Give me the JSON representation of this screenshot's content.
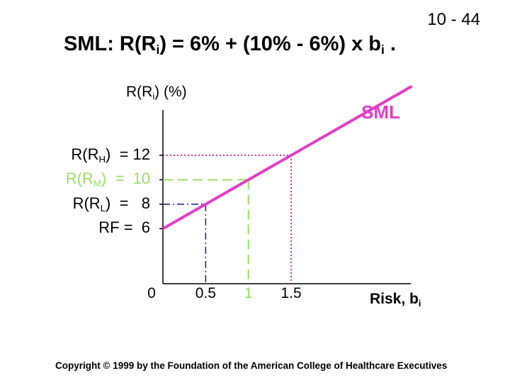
{
  "slide_number": "10 - 44",
  "title": {
    "prefix": "SML: R(R",
    "sub": "i",
    "middle": ") = 6% + (10% - 6%) x b",
    "sub2": "i",
    "suffix": " ."
  },
  "copyright": "Copyright © 1999 by the Foundation of the American College of Healthcare Executives",
  "colors": {
    "sml_line": "#e33cc8",
    "high_guides": "#d0007a",
    "market_guides": "#99e066",
    "low_guides": "#1a2f8a",
    "axis": "#000000"
  },
  "chart_data": {
    "type": "line",
    "series": [
      {
        "name": "SML",
        "x": [
          0,
          1,
          2.9
        ],
        "y": [
          6,
          10,
          17.6
        ]
      }
    ],
    "xlim": [
      0,
      2.9
    ],
    "ylim": [
      1.5,
      16
    ],
    "x_ticks": [
      {
        "value": 0,
        "label": "0",
        "color": "#000000"
      },
      {
        "value": 0.5,
        "label": "0.5",
        "color": "#000000"
      },
      {
        "value": 1,
        "label": "1",
        "color": "#99e066"
      },
      {
        "value": 1.5,
        "label": "1.5",
        "color": "#000000"
      }
    ],
    "xlabel": {
      "main": "Risk, b",
      "sub": "i"
    },
    "ylabel": {
      "prefix": "R(R",
      "sub": "i",
      "suffix": ") (%)"
    },
    "y_labels": [
      {
        "value": 12,
        "prefix": "R(R",
        "sub": "H",
        "suffix": ")",
        "eq": "= 12",
        "color": "#000000"
      },
      {
        "value": 10,
        "prefix": "R(R",
        "sub": "M",
        "suffix": ")",
        "eq": "=  10",
        "color": "#99e066"
      },
      {
        "value": 8,
        "prefix": "R(R",
        "sub": "L",
        "suffix": ")",
        "eq": "=   8",
        "color": "#000000"
      },
      {
        "value": 6,
        "prefix": "",
        "sub": "",
        "suffix": "",
        "eq": "RF =  6",
        "color": "#000000"
      }
    ],
    "guides": [
      {
        "name": "high",
        "x": 1.5,
        "y": 12,
        "style": "dotted",
        "color": "#d0007a"
      },
      {
        "name": "market",
        "x": 1,
        "y": 10,
        "style": "dashed",
        "color": "#99e066"
      },
      {
        "name": "low",
        "x": 0.5,
        "y": 8,
        "style": "dashdot",
        "color": "#1a2f8a"
      }
    ]
  }
}
